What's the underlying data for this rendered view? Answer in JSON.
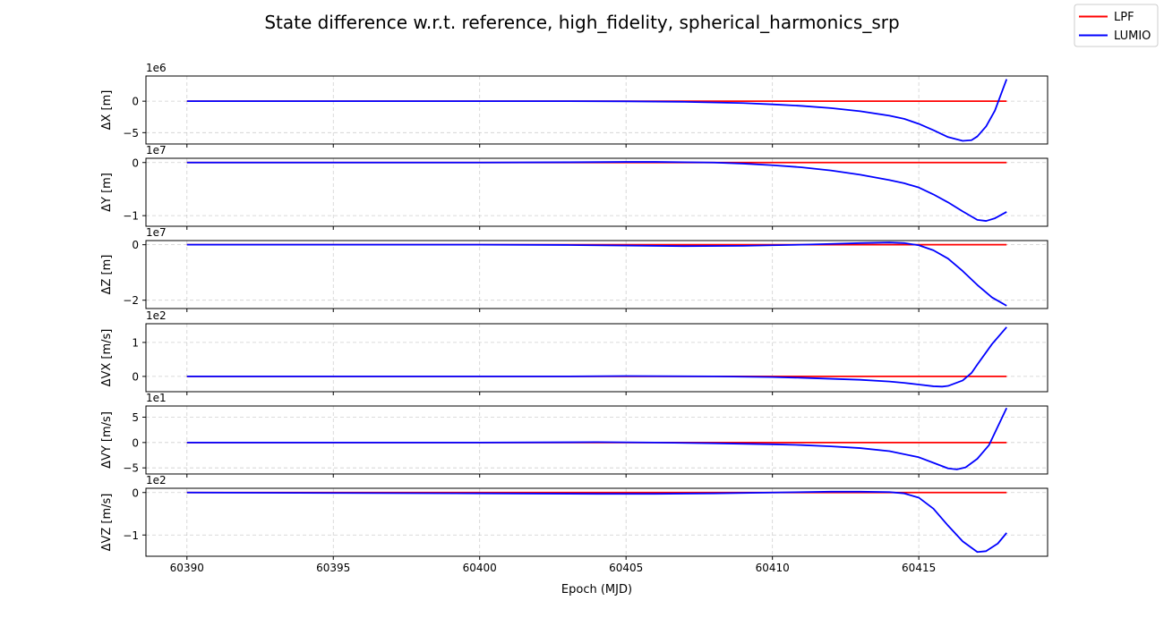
{
  "figure": {
    "title": "State difference w.r.t. reference, high_fidelity, spherical_harmonics_srp",
    "xlabel": "Epoch (MJD)"
  },
  "legend": {
    "placement": "top-right",
    "entries": [
      {
        "label": "LPF",
        "color": "#ff0000"
      },
      {
        "label": "LUMIO",
        "color": "#0000ff"
      }
    ]
  },
  "chart_data": [
    {
      "type": "line",
      "ylabel": "ΔX [m]",
      "offset_label": "1e6",
      "xlim": [
        60388.6,
        60419.4
      ],
      "ylim": [
        -6.8,
        4.0
      ],
      "yticks": [
        -5,
        0
      ],
      "grid": true,
      "series": [
        {
          "name": "LPF",
          "color": "#ff0000",
          "x": [
            60390,
            60418
          ],
          "y": [
            0,
            0
          ]
        },
        {
          "name": "LUMIO",
          "color": "#0000ff",
          "x": [
            60390,
            60395,
            60400,
            60403,
            60405,
            60407,
            60409,
            60410,
            60411,
            60412,
            60413,
            60414,
            60414.5,
            60415,
            60415.5,
            60416,
            60416.5,
            60416.8,
            60417,
            60417.3,
            60417.6,
            60418
          ],
          "y": [
            0,
            0,
            0,
            0,
            -0.02,
            -0.1,
            -0.3,
            -0.5,
            -0.75,
            -1.1,
            -1.6,
            -2.3,
            -2.8,
            -3.6,
            -4.6,
            -5.7,
            -6.3,
            -6.2,
            -5.6,
            -4.0,
            -1.5,
            3.5
          ]
        }
      ]
    },
    {
      "type": "line",
      "ylabel": "ΔY [m]",
      "offset_label": "1e7",
      "xlim": [
        60388.6,
        60419.4
      ],
      "ylim": [
        -1.2,
        0.08
      ],
      "yticks": [
        -1,
        0
      ],
      "grid": true,
      "series": [
        {
          "name": "LPF",
          "color": "#ff0000",
          "x": [
            60390,
            60418
          ],
          "y": [
            0,
            0
          ]
        },
        {
          "name": "LUMIO",
          "color": "#0000ff",
          "x": [
            60390,
            60395,
            60400,
            60403,
            60405,
            60406,
            60408,
            60409,
            60410,
            60411,
            60412,
            60413,
            60414,
            60414.5,
            60415,
            60415.5,
            60416,
            60416.5,
            60417,
            60417.3,
            60417.6,
            60418
          ],
          "y": [
            0,
            0,
            0,
            0.005,
            0.012,
            0.012,
            0.0,
            -0.02,
            -0.05,
            -0.09,
            -0.15,
            -0.23,
            -0.33,
            -0.39,
            -0.47,
            -0.6,
            -0.75,
            -0.92,
            -1.08,
            -1.1,
            -1.05,
            -0.93
          ]
        }
      ]
    },
    {
      "type": "line",
      "ylabel": "ΔZ [m]",
      "offset_label": "1e7",
      "xlim": [
        60388.6,
        60419.4
      ],
      "ylim": [
        -2.3,
        0.15
      ],
      "yticks": [
        -2,
        0
      ],
      "grid": true,
      "series": [
        {
          "name": "LPF",
          "color": "#ff0000",
          "x": [
            60390,
            60418
          ],
          "y": [
            0,
            0
          ]
        },
        {
          "name": "LUMIO",
          "color": "#0000ff",
          "x": [
            60390,
            60395,
            60400,
            60403,
            60405,
            60407,
            60409,
            60410,
            60411,
            60412,
            60413,
            60414,
            60414.5,
            60415,
            60415.5,
            60416,
            60416.5,
            60417,
            60417.5,
            60418
          ],
          "y": [
            0,
            0,
            0,
            -0.01,
            -0.03,
            -0.05,
            -0.04,
            -0.02,
            0.0,
            0.03,
            0.06,
            0.08,
            0.06,
            -0.02,
            -0.2,
            -0.5,
            -0.95,
            -1.45,
            -1.9,
            -2.2
          ]
        }
      ]
    },
    {
      "type": "line",
      "ylabel": "ΔVX [m/s]",
      "offset_label": "1e2",
      "xlim": [
        60388.6,
        60419.4
      ],
      "ylim": [
        -0.45,
        1.55
      ],
      "yticks": [
        0,
        1
      ],
      "grid": true,
      "series": [
        {
          "name": "LPF",
          "color": "#ff0000",
          "x": [
            60390,
            60418
          ],
          "y": [
            0,
            0
          ]
        },
        {
          "name": "LUMIO",
          "color": "#0000ff",
          "x": [
            60390,
            60395,
            60400,
            60403,
            60405,
            60408,
            60410,
            60411,
            60412,
            60413,
            60414,
            60414.5,
            60415,
            60415.5,
            60415.8,
            60416,
            60416.5,
            60416.8,
            60417,
            60417.5,
            60418
          ],
          "y": [
            0,
            0,
            0,
            0,
            0.01,
            0.0,
            -0.02,
            -0.04,
            -0.07,
            -0.1,
            -0.15,
            -0.19,
            -0.24,
            -0.29,
            -0.3,
            -0.28,
            -0.12,
            0.1,
            0.35,
            0.95,
            1.45
          ]
        }
      ]
    },
    {
      "type": "line",
      "ylabel": "ΔVY [m/s]",
      "offset_label": "1e1",
      "xlim": [
        60388.6,
        60419.4
      ],
      "ylim": [
        -6.2,
        7.2
      ],
      "yticks": [
        -5,
        0,
        5
      ],
      "grid": true,
      "series": [
        {
          "name": "LPF",
          "color": "#ff0000",
          "x": [
            60390,
            60418
          ],
          "y": [
            0,
            0
          ]
        },
        {
          "name": "LUMIO",
          "color": "#0000ff",
          "x": [
            60390,
            60395,
            60400,
            60403,
            60404,
            60406,
            60408,
            60410,
            60411,
            60412,
            60413,
            60414,
            60415,
            60415.5,
            60416,
            60416.3,
            60416.6,
            60417,
            60417.4,
            60418
          ],
          "y": [
            0,
            0,
            0,
            0.05,
            0.08,
            0.0,
            -0.15,
            -0.35,
            -0.5,
            -0.75,
            -1.1,
            -1.7,
            -2.9,
            -4.0,
            -5.1,
            -5.3,
            -4.9,
            -3.2,
            -0.5,
            6.8
          ]
        }
      ]
    },
    {
      "type": "line",
      "ylabel": "ΔVZ [m/s]",
      "offset_label": "1e2",
      "xlim": [
        60388.6,
        60419.4
      ],
      "ylim": [
        -1.5,
        0.1
      ],
      "yticks": [
        -1,
        0
      ],
      "grid": true,
      "series": [
        {
          "name": "LPF",
          "color": "#ff0000",
          "x": [
            60390,
            60418
          ],
          "y": [
            0,
            0
          ]
        },
        {
          "name": "LUMIO",
          "color": "#0000ff",
          "x": [
            60390,
            60395,
            60400,
            60404,
            60406,
            60408,
            60410,
            60412,
            60413,
            60414,
            60414.5,
            60415,
            60415.5,
            60416,
            60416.5,
            60417,
            60417.3,
            60417.7,
            60418
          ],
          "y": [
            0,
            -0.01,
            -0.02,
            -0.03,
            -0.03,
            -0.02,
            0.0,
            0.02,
            0.02,
            0.01,
            -0.02,
            -0.12,
            -0.38,
            -0.78,
            -1.15,
            -1.4,
            -1.38,
            -1.2,
            -0.95
          ]
        }
      ]
    }
  ],
  "xaxis": {
    "ticks": [
      60390,
      60395,
      60400,
      60405,
      60410,
      60415
    ]
  }
}
